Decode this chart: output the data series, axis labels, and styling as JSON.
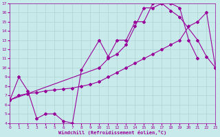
{
  "xlabel": "Windchill (Refroidissement éolien,°C)",
  "xlim": [
    0,
    23
  ],
  "ylim": [
    4,
    17
  ],
  "xticks": [
    0,
    1,
    2,
    3,
    4,
    5,
    6,
    7,
    8,
    9,
    10,
    11,
    12,
    13,
    14,
    15,
    16,
    17,
    18,
    19,
    20,
    21,
    22,
    23
  ],
  "yticks": [
    4,
    5,
    6,
    7,
    8,
    9,
    10,
    11,
    12,
    13,
    14,
    15,
    16,
    17
  ],
  "bg_color": "#c8eaea",
  "grid_color": "#aed4d4",
  "line_color": "#990099",
  "line1_x": [
    0,
    1,
    2,
    3,
    4,
    5,
    6,
    7,
    8,
    10,
    11,
    12,
    13,
    14,
    15,
    16,
    17,
    18,
    19,
    20,
    21
  ],
  "line1_y": [
    6.5,
    9.0,
    7.5,
    4.5,
    5.0,
    5.0,
    4.2,
    4.0,
    9.8,
    13.0,
    11.2,
    13.0,
    13.0,
    15.0,
    15.0,
    17.0,
    17.0,
    17.0,
    16.5,
    13.0,
    11.0
  ],
  "line2_x": [
    0,
    1,
    2,
    3,
    4,
    5,
    6,
    7,
    8,
    9,
    10,
    11,
    12,
    13,
    14,
    15,
    16,
    17,
    18,
    19,
    20,
    21,
    22,
    23
  ],
  "line2_y": [
    6.5,
    7.0,
    7.2,
    7.3,
    7.5,
    7.6,
    7.7,
    7.8,
    8.0,
    8.2,
    8.5,
    9.0,
    9.5,
    10.0,
    10.5,
    11.0,
    11.5,
    12.0,
    12.5,
    13.0,
    14.5,
    15.0,
    16.0,
    10.0
  ],
  "line3_x": [
    0,
    10,
    11,
    12,
    13,
    14,
    15,
    16,
    17,
    18,
    19,
    21,
    22,
    23
  ],
  "line3_y": [
    6.5,
    10.0,
    11.0,
    11.5,
    12.5,
    14.5,
    16.5,
    16.5,
    17.0,
    16.2,
    15.5,
    13.0,
    11.2,
    10.0
  ]
}
